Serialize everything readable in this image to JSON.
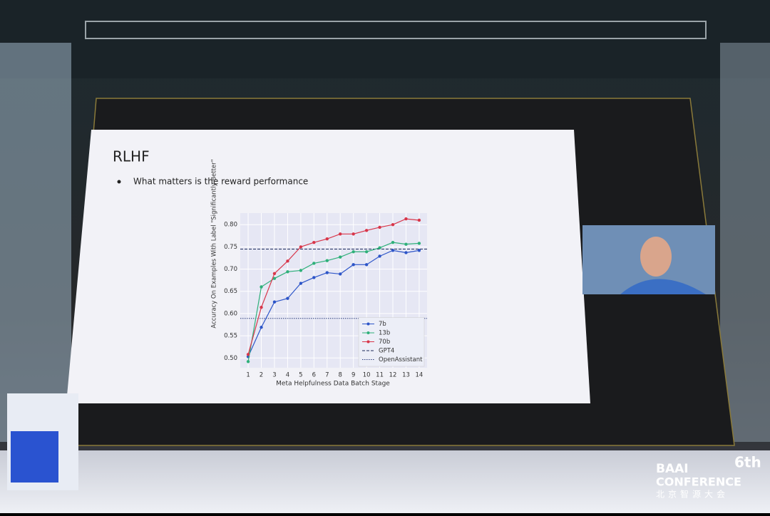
{
  "slide": {
    "title": "RLHF",
    "bullet": "What matters is the reward performance"
  },
  "chart_data": {
    "type": "line",
    "x": [
      1,
      2,
      3,
      4,
      5,
      6,
      7,
      8,
      9,
      10,
      11,
      12,
      13,
      14
    ],
    "xlabel": "Meta Helpfulness Data Batch Stage",
    "ylabel": "Accuracy On Examples With Label \"Significantly Better\"",
    "xlim": [
      0.4,
      14.6
    ],
    "xticks": [
      1,
      2,
      3,
      4,
      5,
      6,
      7,
      8,
      9,
      10,
      11,
      12,
      13,
      14
    ],
    "ylim": [
      0.478,
      0.826
    ],
    "yticks": [
      {
        "value": 0.5,
        "label": "0.50"
      },
      {
        "value": 0.55,
        "label": "0.55"
      },
      {
        "value": 0.6,
        "label": "0.60"
      },
      {
        "value": 0.65,
        "label": "0.65"
      },
      {
        "value": 0.7,
        "label": "0.70"
      },
      {
        "value": 0.75,
        "label": "0.75"
      },
      {
        "value": 0.8,
        "label": "0.80"
      }
    ],
    "grid": true,
    "legend": "lower right",
    "series": [
      {
        "name": "7b",
        "color": "#2d55c8",
        "values": [
          0.503,
          0.569,
          0.626,
          0.634,
          0.668,
          0.681,
          0.692,
          0.689,
          0.71,
          0.71,
          0.729,
          0.742,
          0.737,
          0.742
        ]
      },
      {
        "name": "13b",
        "color": "#2fb07a",
        "values": [
          0.492,
          0.66,
          0.679,
          0.694,
          0.697,
          0.713,
          0.719,
          0.727,
          0.739,
          0.739,
          0.748,
          0.76,
          0.756,
          0.758
        ]
      },
      {
        "name": "70b",
        "color": "#d8364a",
        "values": [
          0.508,
          0.614,
          0.69,
          0.718,
          0.75,
          0.76,
          0.768,
          0.779,
          0.779,
          0.787,
          0.794,
          0.8,
          0.813,
          0.81
        ]
      }
    ],
    "hlines": [
      {
        "name": "GPT4",
        "value": 0.745,
        "color": "#1c2a5a",
        "dash": "4,2"
      },
      {
        "name": "OpenAssistant",
        "value": 0.589,
        "color": "#2a3c7a",
        "dash": "1.5,1.5"
      }
    ]
  },
  "branding": {
    "edition": "6th",
    "line1": "BAAI",
    "line2": "CONFERENCE",
    "line3": "北京智源大会"
  }
}
